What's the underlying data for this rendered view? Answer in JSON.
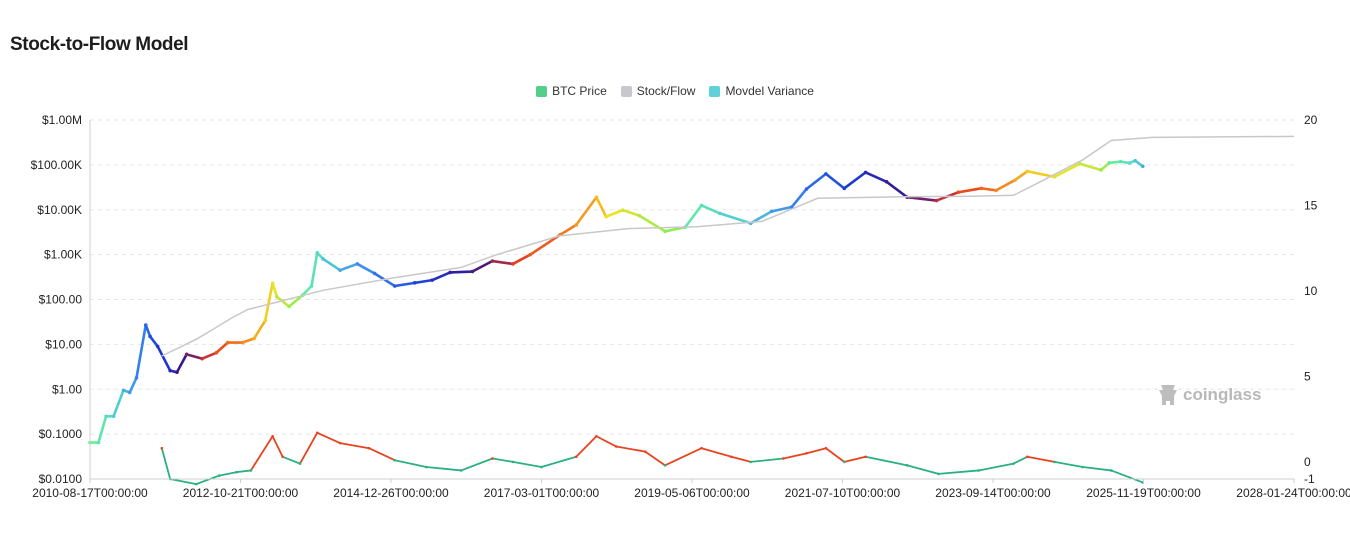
{
  "page": {
    "title": "Stock-to-Flow Model"
  },
  "legend": [
    {
      "label": "BTC Price",
      "color": "#52cf8a"
    },
    {
      "label": "Stock/Flow",
      "color": "#c8c8cc"
    },
    {
      "label": "Movdel Variance",
      "color": "#5fd1d9"
    }
  ],
  "watermark": {
    "text": "coinglass",
    "icon": "coinglass-logo-icon"
  },
  "chart_data": {
    "type": "line",
    "title": "Stock-to-Flow Model",
    "x_tick_labels": [
      "2010-08-17T00:00:00",
      "2012-10-21T00:00:00",
      "2014-12-26T00:00:00",
      "2017-03-01T00:00:00",
      "2019-05-06T00:00:00",
      "2021-07-10T00:00:00",
      "2023-09-14T00:00:00",
      "2025-11-19T00:00:00",
      "2028-01-24T00:00:00"
    ],
    "xlim": [
      "2010-08-17",
      "2028-01-24"
    ],
    "y_left": {
      "scale": "log",
      "ylim": [
        0.01,
        1000000
      ],
      "tick_values": [
        0.01,
        0.1,
        1,
        10,
        100,
        1000,
        10000,
        100000,
        1000000
      ],
      "tick_labels": [
        "$0.0100",
        "$0.1000",
        "$1.00",
        "$10.00",
        "$100.00",
        "$1.00K",
        "$10.00K",
        "$100.00K",
        "$1.00M"
      ]
    },
    "y_right": {
      "scale": "linear",
      "ylim": [
        -1,
        20
      ],
      "tick_values": [
        -1,
        0,
        5,
        10,
        15,
        20
      ],
      "tick_labels": [
        "-1",
        "0",
        "5",
        "10",
        "15",
        "20"
      ]
    },
    "grid": true,
    "series": [
      {
        "name": "BTC Price",
        "axis": "left",
        "points": [
          [
            "2010-08-17",
            0.065
          ],
          [
            "2010-10-01",
            0.065
          ],
          [
            "2010-11-10",
            0.25
          ],
          [
            "2010-12-20",
            0.25
          ],
          [
            "2011-02-10",
            0.95
          ],
          [
            "2011-03-15",
            0.85
          ],
          [
            "2011-04-20",
            1.8
          ],
          [
            "2011-06-08",
            27
          ],
          [
            "2011-07-01",
            15
          ],
          [
            "2011-08-10",
            9
          ],
          [
            "2011-10-15",
            2.6
          ],
          [
            "2011-11-20",
            2.4
          ],
          [
            "2012-01-10",
            6
          ],
          [
            "2012-04-01",
            4.8
          ],
          [
            "2012-06-15",
            6.5
          ],
          [
            "2012-08-15",
            11
          ],
          [
            "2012-11-01",
            11
          ],
          [
            "2013-01-01",
            13.5
          ],
          [
            "2013-03-01",
            34
          ],
          [
            "2013-04-09",
            230
          ],
          [
            "2013-05-01",
            115
          ],
          [
            "2013-07-05",
            70
          ],
          [
            "2013-09-15",
            125
          ],
          [
            "2013-11-01",
            200
          ],
          [
            "2013-12-01",
            1100
          ],
          [
            "2014-01-01",
            800
          ],
          [
            "2014-04-01",
            450
          ],
          [
            "2014-07-01",
            620
          ],
          [
            "2014-10-01",
            380
          ],
          [
            "2015-01-15",
            200
          ],
          [
            "2015-05-01",
            235
          ],
          [
            "2015-08-01",
            270
          ],
          [
            "2015-11-04",
            400
          ],
          [
            "2016-03-01",
            420
          ],
          [
            "2016-06-15",
            720
          ],
          [
            "2016-10-01",
            620
          ],
          [
            "2017-01-01",
            1000
          ],
          [
            "2017-06-10",
            2800
          ],
          [
            "2017-09-01",
            4600
          ],
          [
            "2017-12-17",
            19000
          ],
          [
            "2018-02-06",
            7000
          ],
          [
            "2018-05-05",
            9800
          ],
          [
            "2018-08-01",
            7400
          ],
          [
            "2018-12-15",
            3300
          ],
          [
            "2019-04-01",
            4100
          ],
          [
            "2019-06-26",
            12500
          ],
          [
            "2019-10-01",
            8300
          ],
          [
            "2020-03-12",
            5000
          ],
          [
            "2020-07-01",
            9200
          ],
          [
            "2020-10-15",
            11500
          ],
          [
            "2021-01-01",
            29000
          ],
          [
            "2021-04-14",
            63000
          ],
          [
            "2021-07-20",
            30000
          ],
          [
            "2021-11-10",
            68000
          ],
          [
            "2022-03-01",
            42000
          ],
          [
            "2022-06-18",
            19000
          ],
          [
            "2022-11-20",
            16000
          ],
          [
            "2023-03-15",
            24500
          ],
          [
            "2023-07-15",
            30000
          ],
          [
            "2023-10-01",
            27000
          ],
          [
            "2024-01-10",
            46000
          ],
          [
            "2024-03-14",
            72000
          ],
          [
            "2024-08-05",
            54000
          ],
          [
            "2024-12-17",
            106000
          ],
          [
            "2025-04-08",
            77000
          ],
          [
            "2025-05-22",
            111000
          ],
          [
            "2025-07-20",
            118000
          ],
          [
            "2025-09-05",
            110000
          ],
          [
            "2025-10-06",
            124000
          ],
          [
            "2025-11-15",
            93000
          ]
        ]
      },
      {
        "name": "Stock/Flow",
        "axis": "left",
        "points": [
          [
            "2011-09-01",
            5.5
          ],
          [
            "2012-03-01",
            13
          ],
          [
            "2012-06-01",
            22
          ],
          [
            "2012-09-01",
            38
          ],
          [
            "2012-11-28",
            60
          ],
          [
            "2013-03-01",
            75
          ],
          [
            "2014-01-01",
            160
          ],
          [
            "2015-01-01",
            300
          ],
          [
            "2016-01-01",
            520
          ],
          [
            "2016-07-09",
            1000
          ],
          [
            "2017-06-01",
            2600
          ],
          [
            "2018-06-01",
            3800
          ],
          [
            "2019-06-01",
            4200
          ],
          [
            "2020-05-11",
            5500
          ],
          [
            "2021-03-01",
            18000
          ],
          [
            "2022-06-01",
            19500
          ],
          [
            "2023-06-01",
            20000
          ],
          [
            "2024-01-01",
            21000
          ],
          [
            "2024-04-20",
            36000
          ],
          [
            "2025-01-01",
            130000
          ],
          [
            "2025-06-01",
            350000
          ],
          [
            "2026-01-01",
            410000
          ],
          [
            "2028-01-24",
            430000
          ]
        ]
      },
      {
        "name": "Movdel Variance",
        "axis": "right",
        "points": [
          [
            "2011-09-01",
            0.8
          ],
          [
            "2011-10-15",
            -1.0
          ],
          [
            "2012-03-01",
            -1.3
          ],
          [
            "2012-07-01",
            -0.8
          ],
          [
            "2012-10-01",
            -0.6
          ],
          [
            "2012-12-15",
            -0.5
          ],
          [
            "2013-04-09",
            1.5
          ],
          [
            "2013-06-01",
            0.3
          ],
          [
            "2013-09-01",
            -0.1
          ],
          [
            "2013-12-01",
            1.7
          ],
          [
            "2014-04-01",
            1.1
          ],
          [
            "2014-09-01",
            0.8
          ],
          [
            "2015-01-15",
            0.1
          ],
          [
            "2015-07-01",
            -0.3
          ],
          [
            "2016-01-01",
            -0.5
          ],
          [
            "2016-06-15",
            0.2
          ],
          [
            "2016-10-01",
            0.0
          ],
          [
            "2017-03-01",
            -0.3
          ],
          [
            "2017-09-01",
            0.3
          ],
          [
            "2017-12-17",
            1.5
          ],
          [
            "2018-04-01",
            0.9
          ],
          [
            "2018-09-01",
            0.6
          ],
          [
            "2018-12-15",
            -0.2
          ],
          [
            "2019-06-26",
            0.8
          ],
          [
            "2019-12-01",
            0.3
          ],
          [
            "2020-03-12",
            0.0
          ],
          [
            "2020-09-01",
            0.2
          ],
          [
            "2021-01-01",
            0.5
          ],
          [
            "2021-04-14",
            0.8
          ],
          [
            "2021-07-20",
            0.0
          ],
          [
            "2021-11-10",
            0.3
          ],
          [
            "2022-06-18",
            -0.2
          ],
          [
            "2022-12-01",
            -0.7
          ],
          [
            "2023-07-01",
            -0.5
          ],
          [
            "2024-01-01",
            -0.1
          ],
          [
            "2024-03-14",
            0.3
          ],
          [
            "2024-08-05",
            0.0
          ],
          [
            "2025-01-01",
            -0.3
          ],
          [
            "2025-06-01",
            -0.5
          ],
          [
            "2025-11-15",
            -1.2
          ]
        ]
      }
    ]
  }
}
